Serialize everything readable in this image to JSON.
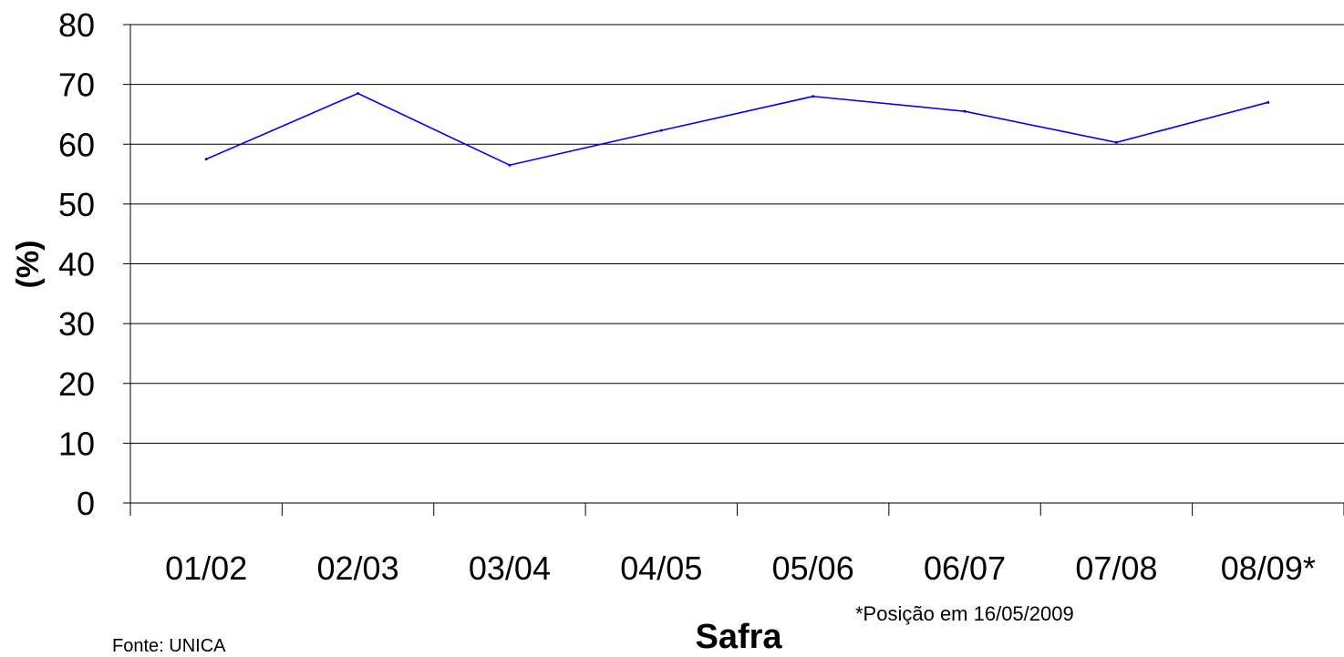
{
  "chart_data": {
    "type": "line",
    "categories": [
      "01/02",
      "02/03",
      "03/04",
      "04/05",
      "05/06",
      "06/07",
      "07/08",
      "08/09*"
    ],
    "series": [
      {
        "values": [
          57.5,
          68.5,
          56.5,
          62.3,
          68.0,
          65.5,
          60.3,
          67.0
        ],
        "color": "#0000ff"
      }
    ],
    "xlabel": "Safra",
    "ylabel": "(%)",
    "ylim": [
      0,
      80
    ],
    "yticks": [
      0,
      10,
      20,
      30,
      40,
      50,
      60,
      70,
      80
    ],
    "grid": "horizontal",
    "legend": "none"
  },
  "footnote": "*Posição em 16/05/2009",
  "source": "Fonte: UNICA"
}
